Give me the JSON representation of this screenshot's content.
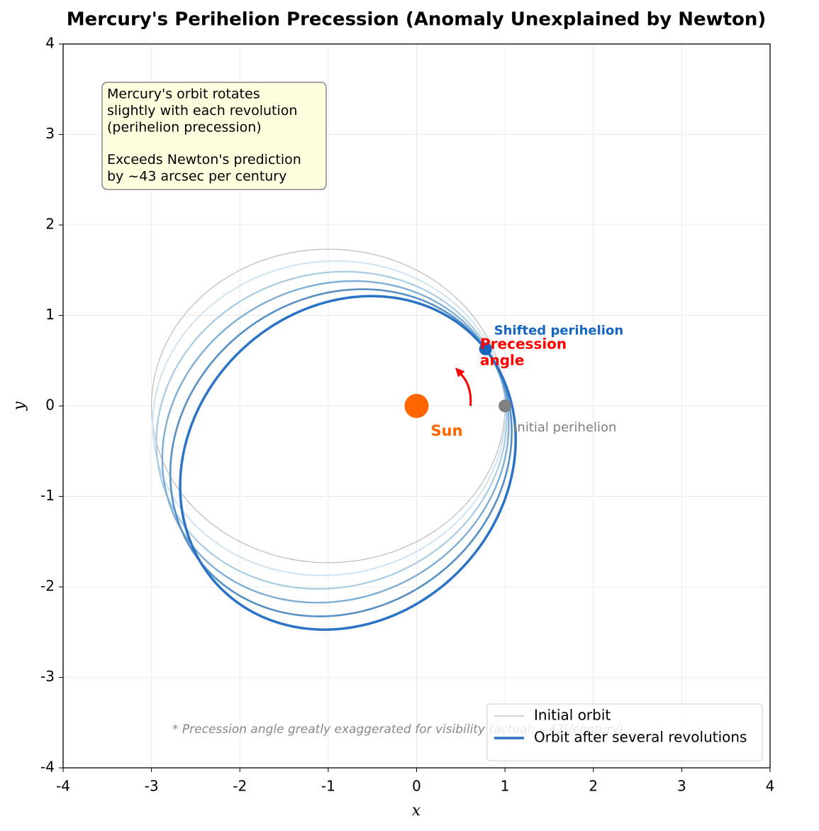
{
  "chart_data": {
    "type": "orbit",
    "title": "Mercury's Perihelion Precession (Anomaly Unexplained by Newton)",
    "xlabel": "x",
    "ylabel": "y",
    "xlim": [
      -4,
      4
    ],
    "ylim": [
      -4,
      4
    ],
    "xticks": [
      -4,
      -3,
      -2,
      -1,
      0,
      1,
      2,
      3,
      4
    ],
    "yticks": [
      -4,
      -3,
      -2,
      -1,
      0,
      1,
      2,
      3,
      4
    ],
    "grid": true,
    "legend": "lower right",
    "orbits": [
      {
        "name": "Initial orbit",
        "color": "#bbbbbb",
        "linewidth": 1.2,
        "semi_major": 2,
        "eccentricity": 0.5,
        "perihelion_angle": 0
      },
      {
        "color": "#cfe3f1",
        "linewidth": 2,
        "semi_major": 2,
        "eccentricity": 0.5,
        "perihelion_angle": 7.8
      },
      {
        "color": "#a8cbe4",
        "linewidth": 2.2,
        "semi_major": 2,
        "eccentricity": 0.5,
        "perihelion_angle": 15.6
      },
      {
        "color": "#7eaed6",
        "linewidth": 2.4,
        "semi_major": 2,
        "eccentricity": 0.5,
        "perihelion_angle": 23.4
      },
      {
        "color": "#5790c5",
        "linewidth": 2.6,
        "semi_major": 2,
        "eccentricity": 0.5,
        "perihelion_angle": 31.2
      },
      {
        "name": "Orbit after several revolutions",
        "color": "#2b73c6",
        "linewidth": 3.5,
        "semi_major": 2,
        "eccentricity": 0.5,
        "perihelion_angle": 39
      }
    ],
    "points": [
      {
        "label": "Sun",
        "x": 0,
        "y": 0,
        "color": "#ff6600"
      },
      {
        "label": "Initial perihelion",
        "x": 1,
        "y": 0,
        "color": "#808080"
      },
      {
        "label": "Shifted perihelion",
        "x": 0.78,
        "y": 0.63,
        "color": "#1565c0"
      }
    ],
    "precession_label": [
      "Precession",
      "angle"
    ],
    "info_box": [
      [
        "Mercury's orbit rotates",
        "slightly with each revolution",
        "(perihelion precession)"
      ],
      [
        "Exceeds Newton's prediction",
        "by ~43 arcsec per century"
      ]
    ],
    "note": "* Precession angle greatly exaggerated for visibility (actual: ~43″/century)"
  }
}
